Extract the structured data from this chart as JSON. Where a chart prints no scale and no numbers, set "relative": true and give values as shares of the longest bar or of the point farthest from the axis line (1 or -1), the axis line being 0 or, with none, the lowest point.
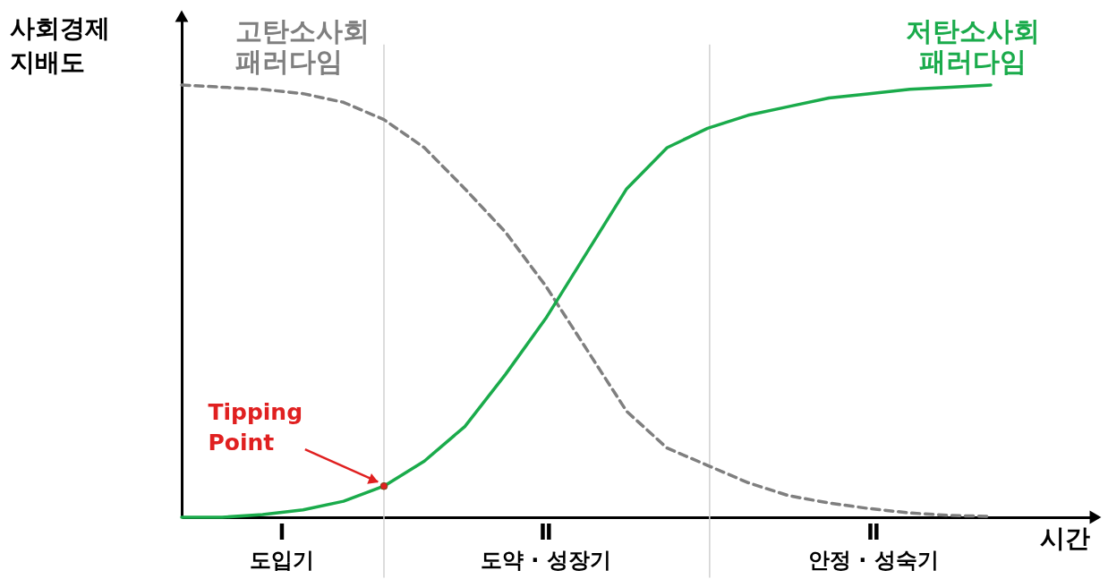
{
  "chart_data": {
    "type": "line",
    "relative": true,
    "ylabel": "사회경제\n지배도",
    "xlabel": "시간",
    "categories": [
      null,
      null,
      null,
      null,
      null,
      null,
      null,
      null,
      null,
      null,
      null,
      null,
      null,
      null,
      null,
      null,
      null,
      null,
      null,
      null,
      null
    ],
    "series": [
      {
        "name": "고탄소사회\n패러다임",
        "color": "#7f7f7f",
        "line_style": "dashed",
        "values": [
          1.0,
          0.995,
          0.99,
          0.98,
          0.96,
          0.92,
          0.855,
          0.76,
          0.66,
          0.535,
          0.39,
          0.245,
          0.16,
          0.12,
          0.08,
          0.05,
          0.033,
          0.02,
          0.01,
          0.004,
          0.002
        ]
      },
      {
        "name": "저탄소사회\n패러다임",
        "color": "#1aab4b",
        "line_style": "solid",
        "values": [
          0,
          0,
          0.006,
          0.017,
          0.037,
          0.072,
          0.13,
          0.21,
          0.33,
          0.46,
          0.61,
          0.76,
          0.855,
          0.9,
          0.93,
          0.95,
          0.97,
          0.98,
          0.99,
          0.995,
          1.0
        ]
      }
    ],
    "annotations": [
      "Tipping\nPoint",
      "Ⅰ\n도입기",
      "Ⅱ\n도약 · 성장기",
      "Ⅱ\n안정 · 성숙기"
    ]
  }
}
